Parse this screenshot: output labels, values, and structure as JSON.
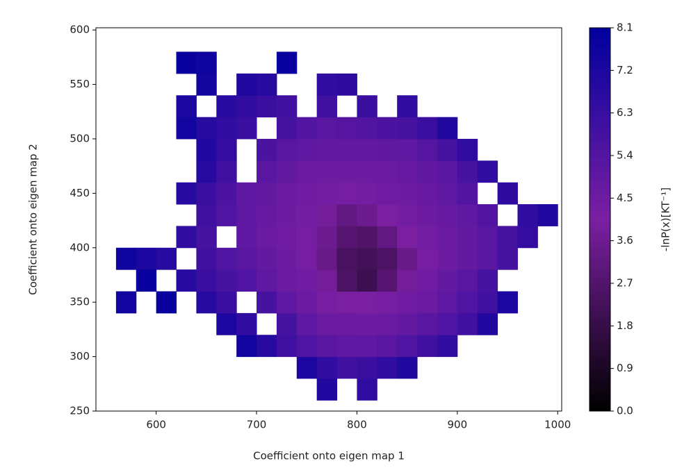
{
  "chart_data": {
    "type": "heatmap",
    "xlabel": "Coefficient onto eigen map 1",
    "ylabel": "Coefficient onto eigen map 2",
    "colorbar_label": "-lnP(x)[KT⁻¹]",
    "xlim": [
      540,
      1004
    ],
    "ylim": [
      250,
      602
    ],
    "xticks": [
      600,
      700,
      800,
      900,
      1000
    ],
    "yticks": [
      250,
      300,
      350,
      400,
      450,
      500,
      550,
      600
    ],
    "clim": [
      0,
      8.1
    ],
    "cticks": [
      {
        "value": 0,
        "label": "0.0"
      },
      0.9,
      1.8,
      2.7,
      3.6,
      4.5,
      5.4,
      6.3,
      7.2,
      8.1
    ],
    "colormap": [
      "#000000",
      "#7b1fa2",
      "#00009e"
    ],
    "x": [
      570,
      590,
      610,
      630,
      650,
      670,
      690,
      710,
      730,
      750,
      770,
      790,
      810,
      830,
      850,
      870,
      890,
      910,
      930,
      950,
      970,
      990
    ],
    "y": [
      270,
      290,
      310,
      330,
      350,
      370,
      390,
      410,
      430,
      450,
      470,
      490,
      510,
      530,
      550,
      570
    ],
    "z": [
      [
        null,
        null,
        null,
        null,
        null,
        null,
        null,
        null,
        null,
        null,
        7,
        null,
        6.5,
        null,
        null,
        null,
        null,
        null,
        null,
        null,
        null,
        null
      ],
      [
        null,
        null,
        null,
        null,
        null,
        null,
        null,
        null,
        null,
        7.2,
        6.5,
        6,
        6.2,
        6.5,
        7,
        null,
        null,
        null,
        null,
        null,
        null,
        null
      ],
      [
        null,
        null,
        null,
        null,
        null,
        null,
        7.5,
        6.8,
        6,
        5.5,
        5.2,
        5,
        5,
        5.2,
        5.5,
        6,
        6.5,
        null,
        null,
        null,
        null,
        null
      ],
      [
        null,
        null,
        null,
        null,
        null,
        7.2,
        6.5,
        null,
        5.8,
        5,
        4.6,
        4.6,
        4.5,
        4.6,
        4.8,
        5.2,
        5.5,
        6,
        7,
        null,
        null,
        null
      ],
      [
        7.5,
        null,
        7.8,
        null,
        6.8,
        6.2,
        null,
        5.8,
        5,
        4.6,
        4.2,
        4,
        4,
        4.2,
        4.4,
        4.6,
        5,
        5.5,
        6,
        7.2,
        null,
        null
      ],
      [
        null,
        7.8,
        null,
        6.8,
        6.2,
        5.8,
        5.5,
        5,
        4.6,
        4.4,
        3.8,
        2.5,
        2,
        2.8,
        3.8,
        4.4,
        4.8,
        5.2,
        5.8,
        null,
        null,
        null
      ],
      [
        7.6,
        7.2,
        6.8,
        null,
        6,
        5.5,
        5.2,
        4.8,
        4.5,
        4.2,
        3.4,
        2.4,
        2.2,
        2.5,
        3.4,
        4.2,
        4.5,
        4.8,
        5.2,
        5.8,
        null,
        null
      ],
      [
        null,
        null,
        null,
        6.5,
        5.8,
        null,
        5,
        4.6,
        4.4,
        4.2,
        3.6,
        2.8,
        2.6,
        3.2,
        4,
        4.3,
        4.6,
        4.8,
        5.2,
        5.8,
        6.4,
        null
      ],
      [
        null,
        null,
        null,
        null,
        6,
        5.5,
        5,
        4.7,
        4.5,
        4.3,
        3.8,
        3.2,
        3.6,
        4,
        4.3,
        4.5,
        4.7,
        5,
        5.4,
        null,
        6.5,
        7
      ],
      [
        null,
        null,
        null,
        6.8,
        6.2,
        5.6,
        5,
        4.8,
        4.6,
        4.4,
        4.3,
        4.2,
        4.3,
        4.4,
        4.5,
        4.7,
        5,
        5.4,
        null,
        6.6,
        null,
        null
      ],
      [
        null,
        null,
        null,
        null,
        6.8,
        6,
        null,
        5.2,
        4.8,
        4.6,
        4.5,
        4.5,
        4.5,
        4.6,
        4.7,
        4.9,
        5.2,
        5.8,
        6.5,
        null,
        null,
        null
      ],
      [
        null,
        null,
        null,
        null,
        7,
        6.4,
        null,
        5.6,
        5.2,
        5,
        4.8,
        4.8,
        4.8,
        4.9,
        5,
        5.3,
        5.8,
        6.5,
        null,
        null,
        null,
        null
      ],
      [
        null,
        null,
        null,
        7.5,
        6.8,
        6.5,
        6.2,
        null,
        5.8,
        5.4,
        5.2,
        5.3,
        5.4,
        5.6,
        5.8,
        6.2,
        7,
        null,
        null,
        null,
        null,
        null
      ],
      [
        null,
        null,
        null,
        7.2,
        null,
        6.8,
        6.5,
        6.2,
        6,
        null,
        6,
        null,
        6.2,
        null,
        6.5,
        null,
        null,
        null,
        null,
        null,
        null,
        null
      ],
      [
        null,
        null,
        null,
        null,
        7.4,
        null,
        7,
        6.8,
        null,
        null,
        6.5,
        6.6,
        null,
        null,
        null,
        null,
        null,
        null,
        null,
        null,
        null,
        null
      ],
      [
        null,
        null,
        null,
        7.8,
        7.6,
        null,
        null,
        null,
        7.8,
        null,
        null,
        null,
        null,
        null,
        null,
        null,
        null,
        null,
        null,
        null,
        null,
        null
      ]
    ]
  }
}
